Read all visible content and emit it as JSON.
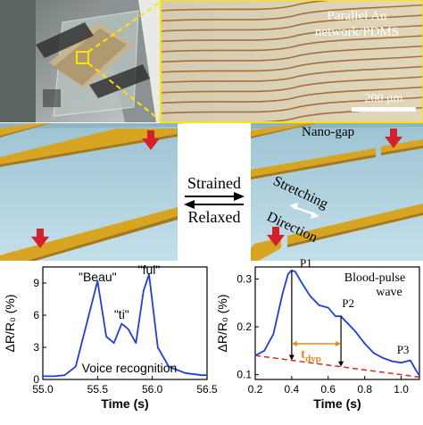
{
  "micrograph": {
    "label_line1": "Parallel Au",
    "label_line2": "network/PDMS",
    "scalebar_text": "200 μm"
  },
  "schematic": {
    "nanogap_label": "Nano-gap",
    "strained_label": "Strained",
    "relaxed_label": "Relaxed",
    "stretching_label": "Stretching",
    "direction_label": "Direction",
    "colors": {
      "pdms": "#b4d5e2",
      "gold": "#d8a522",
      "arrow": "#d4202a"
    }
  },
  "chart_data": [
    {
      "type": "line",
      "title": "",
      "annotation": "Voice recognition",
      "xlabel": "Time (s)",
      "ylabel": "ΔR/R₀ (%)",
      "xlim": [
        55.0,
        56.5
      ],
      "ylim": [
        0,
        10.5
      ],
      "xticks": [
        "55.0",
        "55.5",
        "56.0",
        "56.5"
      ],
      "yticks": [
        "0",
        "3",
        "6",
        "9"
      ],
      "x": [
        55.0,
        55.1,
        55.2,
        55.3,
        55.4,
        55.5,
        55.58,
        55.65,
        55.72,
        55.78,
        55.85,
        55.92,
        55.97,
        56.05,
        56.15,
        56.3,
        56.45,
        56.5
      ],
      "y": [
        0.3,
        0.3,
        0.4,
        1.2,
        5.2,
        9.2,
        4.0,
        3.4,
        5.2,
        4.7,
        3.4,
        8.3,
        9.8,
        3.0,
        1.2,
        0.6,
        0.4,
        0.4
      ],
      "peak_labels": [
        {
          "text": "\"Beau\"",
          "x": 55.5
        },
        {
          "text": "\"ti\"",
          "x": 55.72
        },
        {
          "text": "\"ful\"",
          "x": 55.97
        }
      ],
      "color": "#1f3fd6",
      "grid": false
    },
    {
      "type": "line",
      "title": "",
      "annotation_line1": "Blood-pulse",
      "annotation_line2": "wave",
      "xlabel": "Time (s)",
      "ylabel": "ΔR/R₀ (%)",
      "xlim": [
        0.2,
        1.1
      ],
      "ylim": [
        0.09,
        0.325
      ],
      "xticks": [
        "0.2",
        "0.4",
        "0.6",
        "0.8",
        "1.0"
      ],
      "yticks": [
        "0.1",
        "0.2",
        "0.3"
      ],
      "x": [
        0.2,
        0.25,
        0.3,
        0.35,
        0.38,
        0.4,
        0.42,
        0.45,
        0.5,
        0.55,
        0.6,
        0.64,
        0.67,
        0.7,
        0.75,
        0.8,
        0.85,
        0.9,
        0.95,
        1.0,
        1.05,
        1.08,
        1.1
      ],
      "y": [
        0.14,
        0.15,
        0.185,
        0.27,
        0.31,
        0.318,
        0.315,
        0.295,
        0.265,
        0.245,
        0.24,
        0.222,
        0.222,
        0.21,
        0.19,
        0.165,
        0.145,
        0.135,
        0.128,
        0.125,
        0.13,
        0.11,
        0.098
      ],
      "baseline": {
        "x": [
          0.2,
          1.1
        ],
        "y": [
          0.14,
          0.095
        ],
        "color": "#d42a2a",
        "style": "dashed"
      },
      "peak_labels": [
        {
          "text": "P1",
          "x": 0.4,
          "y": 0.318
        },
        {
          "text": "P2",
          "x": 0.67,
          "y": 0.222
        },
        {
          "text": "P3",
          "x": 1.0,
          "y": 0.125
        }
      ],
      "tdvp_label": "t",
      "tdvp_subscript": "dvp",
      "tdvp_range": [
        0.4,
        0.67
      ],
      "color": "#1f3fd6",
      "grid": false
    }
  ]
}
